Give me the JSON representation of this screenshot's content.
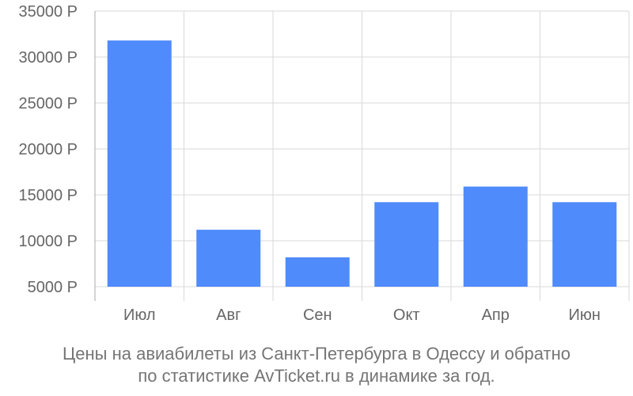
{
  "chart_data": {
    "type": "bar",
    "title": "Цены на авиабилеты из Санкт-Петербурга в Одессу и обратно",
    "subtitle": "по статистике AvTicket.ru в динамике за год.",
    "xlabel": "",
    "ylabel": "",
    "categories": [
      "Июл",
      "Авг",
      "Сен",
      "Окт",
      "Апр",
      "Июн"
    ],
    "values": [
      31800,
      11200,
      8200,
      14200,
      15900,
      14200
    ],
    "ylim": [
      5000,
      35000
    ],
    "y_ticks": [
      5000,
      10000,
      15000,
      20000,
      25000,
      30000,
      35000
    ],
    "y_tick_labels": [
      "5000 Р",
      "10000 Р",
      "15000 Р",
      "20000 Р",
      "25000 Р",
      "30000 Р",
      "35000 Р"
    ],
    "grid": true,
    "legend": "none",
    "colors": {
      "bar": "#4f8bfa",
      "grid": "#d9d9d9",
      "axis_text": "#666666",
      "caption_text": "#757575"
    }
  }
}
